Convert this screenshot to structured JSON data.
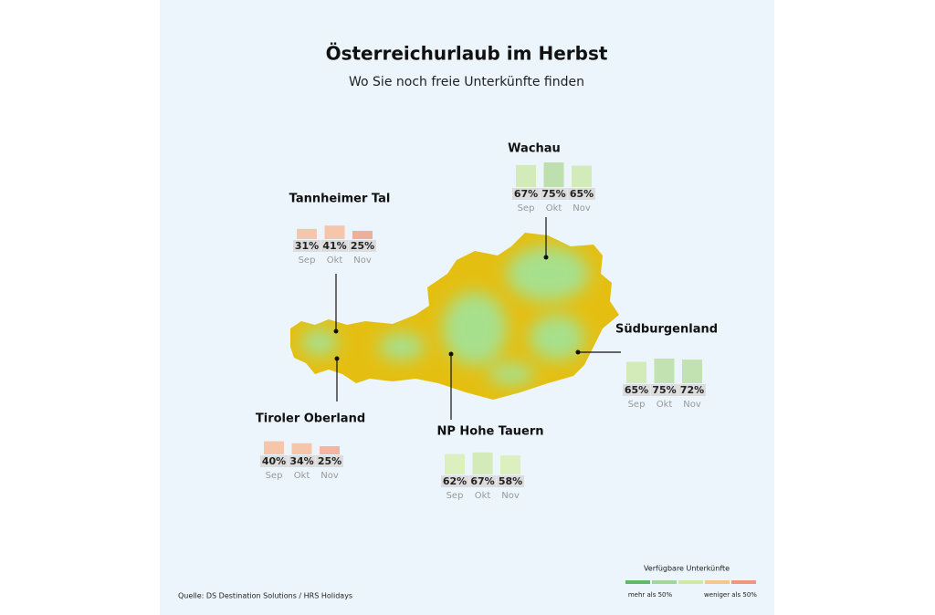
{
  "header": {
    "title": "Österreichurlaub im Herbst",
    "subtitle": "Wo Sie noch freie Unterkünfte finden"
  },
  "regions": [
    {
      "name": "Wachau",
      "months": [
        "Sep",
        "Okt",
        "Nov"
      ],
      "values": [
        67,
        75,
        65
      ],
      "value_labels": [
        "67%",
        "75%",
        "65%"
      ],
      "colors": [
        "#d3eab9",
        "#bde0ae",
        "#d3eab9"
      ]
    },
    {
      "name": "Tannheimer Tal",
      "months": [
        "Sep",
        "Okt",
        "Nov"
      ],
      "values": [
        31,
        41,
        25
      ],
      "value_labels": [
        "31%",
        "41%",
        "25%"
      ],
      "colors": [
        "#f6c6ab",
        "#f6c6ab",
        "#f2ad9c"
      ]
    },
    {
      "name": "Südburgenland",
      "months": [
        "Sep",
        "Okt",
        "Nov"
      ],
      "values": [
        65,
        75,
        72
      ],
      "value_labels": [
        "65%",
        "75%",
        "72%"
      ],
      "colors": [
        "#d3eab9",
        "#c2e2b2",
        "#c2e2b2"
      ]
    },
    {
      "name": "NP Hohe Tauern",
      "months": [
        "Sep",
        "Okt",
        "Nov"
      ],
      "values": [
        62,
        67,
        58
      ],
      "value_labels": [
        "62%",
        "67%",
        "58%"
      ],
      "colors": [
        "#dcefbf",
        "#d3eab9",
        "#dcefbf"
      ]
    },
    {
      "name": "Tiroler Oberland",
      "months": [
        "Sep",
        "Okt",
        "Nov"
      ],
      "values": [
        40,
        34,
        25
      ],
      "value_labels": [
        "40%",
        "34%",
        "25%"
      ],
      "colors": [
        "#f6c6ab",
        "#f6c6ab",
        "#f2b6a2"
      ]
    }
  ],
  "legend": {
    "title": "Verfügbare Unterkünfte",
    "colors": [
      "#62b86a",
      "#9fd69a",
      "#cfe9a6",
      "#f4c58c",
      "#ee9680"
    ],
    "label_more": "mehr als 50%",
    "label_less": "weniger als 50%"
  },
  "source": "Quelle: DS Destination Solutions / HRS Holidays"
}
